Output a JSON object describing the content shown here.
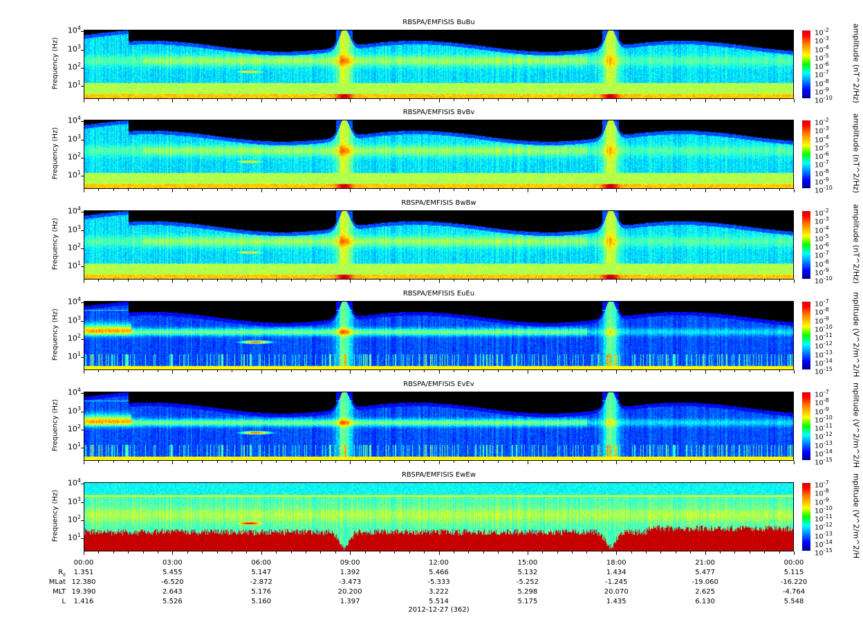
{
  "chart_data": {
    "type": "heatmap",
    "xlabel": "2012-12-27 (362)",
    "x_ticks": [
      "00:00",
      "03:00",
      "06:00",
      "09:00",
      "12:00",
      "15:00",
      "18:00",
      "21:00",
      "00:00"
    ],
    "ylim_hz": [
      2,
      12000
    ],
    "y_scale": "log",
    "colormap": "jet",
    "panels": [
      {
        "title": "RBSPA/EMFISIS  BuBu",
        "ylabel": "Frequency (Hz)",
        "cbar_label": "amplitude (nT^2/Hz)",
        "cbar_exp": [
          -2,
          -3,
          -4,
          -5,
          -6,
          -7,
          -8,
          -9,
          -10
        ],
        "kind": "B"
      },
      {
        "title": "RBSPA/EMFISIS  BvBv",
        "ylabel": "Frequency (Hz)",
        "cbar_label": "amplitude (nT^2/Hz)",
        "cbar_exp": [
          -2,
          -3,
          -4,
          -5,
          -6,
          -7,
          -8,
          -9,
          -10
        ],
        "kind": "B"
      },
      {
        "title": "RBSPA/EMFISIS  BwBw",
        "ylabel": "Frequency (Hz)",
        "cbar_label": "amplitude (nT^2/Hz)",
        "cbar_exp": [
          -2,
          -3,
          -4,
          -5,
          -6,
          -7,
          -8,
          -9,
          -10
        ],
        "kind": "B"
      },
      {
        "title": "RBSPA/EMFISIS  EuEu",
        "ylabel": "Frequency (Hz)",
        "cbar_label": "mplitude (V^2/m^2/H",
        "cbar_exp": [
          -7,
          -8,
          -9,
          -10,
          -11,
          -12,
          -13,
          -14,
          -15
        ],
        "kind": "E"
      },
      {
        "title": "RBSPA/EMFISIS  EvEv",
        "ylabel": "Frequency (Hz)",
        "cbar_label": "mplitude (V^2/m^2/H",
        "cbar_exp": [
          -7,
          -8,
          -9,
          -10,
          -11,
          -12,
          -13,
          -14,
          -15
        ],
        "kind": "E"
      },
      {
        "title": "RBSPA/EMFISIS  EwEw",
        "ylabel": "Frequency (Hz)",
        "cbar_label": "mplitude (V^2/m^2/H",
        "cbar_exp": [
          -7,
          -8,
          -9,
          -10,
          -11,
          -12,
          -13,
          -14,
          -15
        ],
        "kind": "W"
      }
    ],
    "y_tick_exp": [
      4,
      3,
      2,
      1
    ],
    "ephemeris": {
      "labels": [
        "R",
        "MLat",
        "MLT",
        "L"
      ],
      "re_sub": "E",
      "rows": [
        [
          "1.351",
          "5.455",
          "5.147",
          "1.392",
          "5.466",
          "5.132",
          "1.434",
          "5.477",
          "5.115"
        ],
        [
          "12.380",
          "-6.520",
          "-2.872",
          "-3.473",
          "-5.333",
          "-5.252",
          "-1.245",
          "-19.060",
          "-16.220"
        ],
        [
          "19.390",
          "2.643",
          "5.176",
          "20.200",
          "3.222",
          "5.298",
          "20.070",
          "2.625",
          "-4.764"
        ],
        [
          "1.416",
          "5.526",
          "5.160",
          "1.397",
          "5.514",
          "5.175",
          "1.435",
          "6.130",
          "5.548"
        ]
      ]
    }
  }
}
